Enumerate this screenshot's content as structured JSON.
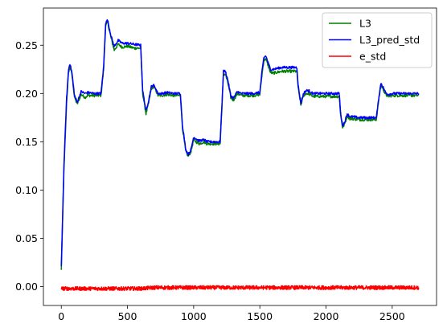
{
  "chart_data": {
    "type": "line",
    "title": "",
    "xlabel": "",
    "ylabel": "",
    "xlim": [
      -135,
      2835
    ],
    "ylim": [
      -0.0195,
      0.2885
    ],
    "x_ticks": [
      0,
      500,
      1000,
      1500,
      2000,
      2500
    ],
    "x_tick_labels": [
      "0",
      "500",
      "1000",
      "1500",
      "2000",
      "2500"
    ],
    "y_ticks": [
      0.0,
      0.05,
      0.1,
      0.15,
      0.2,
      0.25
    ],
    "y_tick_labels": [
      "0.00",
      "0.05",
      "0.10",
      "0.15",
      "0.20",
      "0.25"
    ],
    "grid": false,
    "legend_position": "top-right",
    "series": [
      {
        "name": "L3",
        "color": "#008000",
        "x": [
          0,
          20,
          40,
          55,
          65,
          80,
          100,
          120,
          150,
          180,
          200,
          250,
          300,
          320,
          335,
          350,
          375,
          400,
          430,
          460,
          500,
          550,
          600,
          615,
          640,
          660,
          680,
          695,
          710,
          730,
          760,
          800,
          850,
          900,
          915,
          940,
          960,
          980,
          1000,
          1040,
          1080,
          1100,
          1150,
          1200,
          1215,
          1225,
          1240,
          1260,
          1280,
          1300,
          1330,
          1360,
          1400,
          1450,
          1500,
          1515,
          1530,
          1545,
          1560,
          1580,
          1600,
          1630,
          1670,
          1720,
          1780,
          1790,
          1810,
          1830,
          1850,
          1870,
          1900,
          1950,
          2000,
          2050,
          2100,
          2110,
          2125,
          2140,
          2160,
          2180,
          2200,
          2250,
          2300,
          2380,
          2400,
          2415,
          2430,
          2450,
          2470,
          2500,
          2550,
          2600,
          2650,
          2700
        ],
        "y": [
          0.017,
          0.12,
          0.19,
          0.222,
          0.228,
          0.22,
          0.196,
          0.189,
          0.199,
          0.196,
          0.198,
          0.198,
          0.198,
          0.225,
          0.27,
          0.274,
          0.258,
          0.245,
          0.251,
          0.248,
          0.249,
          0.247,
          0.247,
          0.2,
          0.179,
          0.19,
          0.205,
          0.207,
          0.205,
          0.198,
          0.198,
          0.199,
          0.198,
          0.198,
          0.165,
          0.14,
          0.135,
          0.14,
          0.152,
          0.148,
          0.15,
          0.148,
          0.148,
          0.148,
          0.19,
          0.22,
          0.22,
          0.21,
          0.196,
          0.193,
          0.2,
          0.198,
          0.198,
          0.198,
          0.199,
          0.218,
          0.234,
          0.236,
          0.23,
          0.222,
          0.221,
          0.222,
          0.223,
          0.223,
          0.223,
          0.205,
          0.188,
          0.198,
          0.2,
          0.2,
          0.197,
          0.197,
          0.197,
          0.197,
          0.197,
          0.178,
          0.165,
          0.168,
          0.177,
          0.174,
          0.174,
          0.173,
          0.173,
          0.173,
          0.195,
          0.209,
          0.205,
          0.199,
          0.197,
          0.198,
          0.198,
          0.198,
          0.198,
          0.198
        ]
      },
      {
        "name": "L3_pred_std",
        "color": "#0000ff",
        "x": [
          0,
          20,
          40,
          55,
          65,
          80,
          100,
          120,
          150,
          180,
          200,
          250,
          300,
          320,
          335,
          350,
          375,
          400,
          430,
          460,
          500,
          550,
          600,
          615,
          640,
          660,
          680,
          695,
          710,
          730,
          760,
          800,
          850,
          900,
          915,
          940,
          960,
          980,
          1000,
          1040,
          1080,
          1100,
          1150,
          1200,
          1215,
          1225,
          1240,
          1260,
          1280,
          1300,
          1330,
          1360,
          1400,
          1450,
          1500,
          1515,
          1530,
          1545,
          1560,
          1580,
          1600,
          1630,
          1670,
          1720,
          1780,
          1790,
          1810,
          1830,
          1850,
          1870,
          1900,
          1950,
          2000,
          2050,
          2100,
          2110,
          2125,
          2140,
          2160,
          2180,
          2200,
          2250,
          2300,
          2380,
          2400,
          2415,
          2430,
          2450,
          2470,
          2500,
          2550,
          2600,
          2650,
          2700
        ],
        "y": [
          0.02,
          0.125,
          0.195,
          0.225,
          0.231,
          0.222,
          0.198,
          0.191,
          0.202,
          0.2,
          0.201,
          0.2,
          0.2,
          0.228,
          0.273,
          0.276,
          0.26,
          0.249,
          0.255,
          0.252,
          0.252,
          0.251,
          0.25,
          0.203,
          0.182,
          0.193,
          0.207,
          0.209,
          0.206,
          0.2,
          0.2,
          0.201,
          0.2,
          0.2,
          0.168,
          0.142,
          0.137,
          0.142,
          0.155,
          0.151,
          0.152,
          0.15,
          0.15,
          0.15,
          0.192,
          0.223,
          0.223,
          0.213,
          0.198,
          0.195,
          0.202,
          0.2,
          0.2,
          0.2,
          0.201,
          0.221,
          0.237,
          0.239,
          0.233,
          0.225,
          0.225,
          0.226,
          0.227,
          0.227,
          0.227,
          0.208,
          0.19,
          0.2,
          0.203,
          0.203,
          0.2,
          0.2,
          0.2,
          0.2,
          0.2,
          0.18,
          0.167,
          0.17,
          0.179,
          0.176,
          0.176,
          0.175,
          0.175,
          0.175,
          0.197,
          0.211,
          0.207,
          0.201,
          0.199,
          0.2,
          0.2,
          0.2,
          0.2,
          0.2
        ]
      },
      {
        "name": "e_std",
        "color": "#ff0000",
        "x": [
          0,
          100,
          200,
          300,
          400,
          500,
          600,
          700,
          800,
          900,
          1000,
          1100,
          1200,
          1300,
          1400,
          1500,
          1600,
          1700,
          1800,
          1900,
          2000,
          2100,
          2200,
          2300,
          2400,
          2500,
          2600,
          2700
        ],
        "y": [
          -0.002,
          -0.002,
          -0.002,
          -0.002,
          -0.002,
          -0.002,
          -0.002,
          -0.001,
          -0.001,
          -0.001,
          -0.001,
          -0.001,
          -0.001,
          -0.001,
          -0.001,
          -0.001,
          -0.001,
          -0.001,
          -0.001,
          -0.001,
          -0.001,
          -0.001,
          -0.001,
          -0.001,
          -0.001,
          -0.001,
          -0.001,
          -0.001
        ]
      }
    ]
  }
}
